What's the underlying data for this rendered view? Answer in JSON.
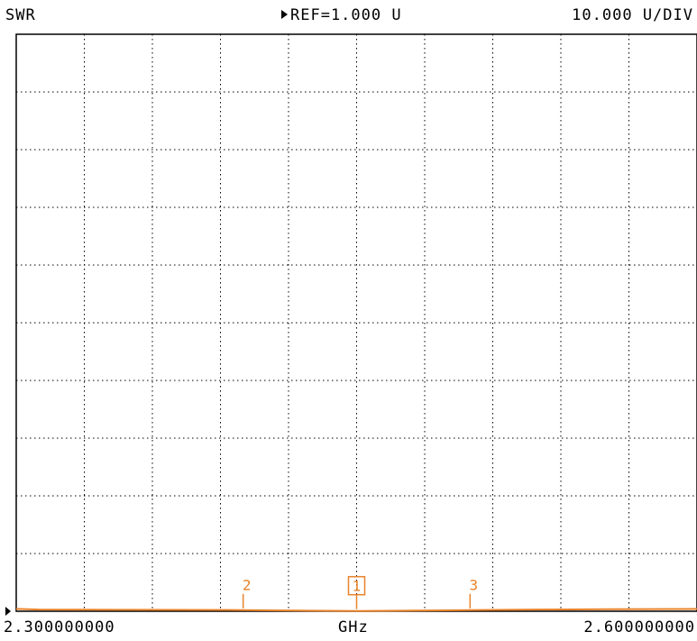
{
  "header": {
    "param": "SWR",
    "ref": "REF=1.000 U",
    "scale": "10.000 U/DIV"
  },
  "footer": {
    "start": "2.300000000",
    "unit": "GHz",
    "stop": "2.600000000"
  },
  "colors": {
    "trace": "#e8832a",
    "grid": "#000000",
    "marker": "#e8832a"
  },
  "chart_data": {
    "type": "line",
    "title": "SWR",
    "xlabel": "GHz",
    "ylabel": "",
    "x_range": [
      2.3,
      2.6
    ],
    "ylim": [
      1.0,
      101.0
    ],
    "ref_value": 1.0,
    "units_per_div": 10.0,
    "divisions": {
      "x": 10,
      "y": 10
    },
    "grid": true,
    "series": [
      {
        "x": [
          2.3,
          2.31,
          2.35,
          2.4,
          2.43,
          2.45,
          2.47,
          2.5,
          2.53,
          2.56,
          2.6
        ],
        "y": [
          1.4,
          1.3,
          1.25,
          1.2,
          1.1,
          1.05,
          1.1,
          1.2,
          1.3,
          1.35,
          1.4
        ]
      }
    ],
    "markers": [
      {
        "label": "2",
        "x": 2.4
      },
      {
        "label": "1",
        "x": 2.45,
        "active": true
      },
      {
        "label": "3",
        "x": 2.5
      }
    ]
  }
}
